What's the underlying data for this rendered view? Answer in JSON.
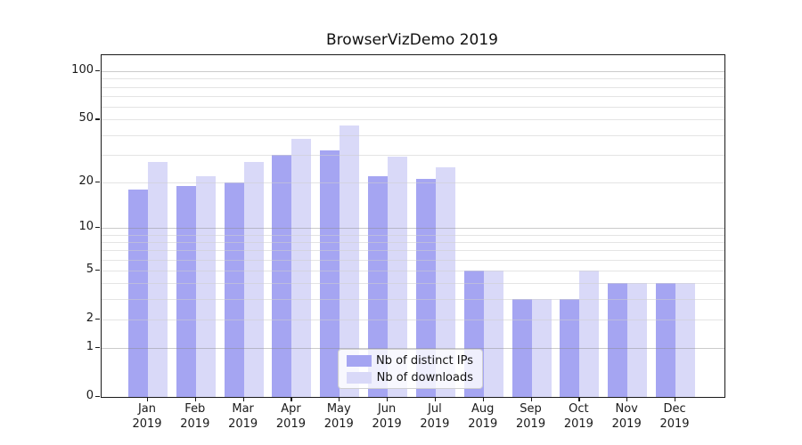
{
  "title": "BrowserVizDemo 2019",
  "colors": {
    "ips_bar": "#a5a5f2",
    "downloads_bar": "#d9d9f8",
    "minor_gridline": "rgba(205,205,205,0.55)",
    "major_gridline": "rgba(140,140,140,0.45)",
    "axis": "#1a1a1a"
  },
  "year_label": "2019",
  "chart_data": {
    "type": "bar",
    "title": "BrowserVizDemo 2019",
    "x_categories": [
      "Jan 2019",
      "Feb 2019",
      "Mar 2019",
      "Apr 2019",
      "May 2019",
      "Jun 2019",
      "Jul 2019",
      "Aug 2019",
      "Sep 2019",
      "Oct 2019",
      "Nov 2019",
      "Dec 2019"
    ],
    "months": [
      "Jan",
      "Feb",
      "Mar",
      "Apr",
      "May",
      "Jun",
      "Jul",
      "Aug",
      "Sep",
      "Oct",
      "Nov",
      "Dec"
    ],
    "series": [
      {
        "name": "Nb of distinct IPs",
        "color_key": "ips_bar",
        "values": [
          18,
          19,
          20,
          30,
          32,
          22,
          21,
          5,
          3,
          3,
          4,
          4
        ]
      },
      {
        "name": "Nb of downloads",
        "color_key": "downloads_bar",
        "values": [
          27,
          22,
          27,
          38,
          46,
          29,
          25,
          5,
          3,
          5,
          4,
          4
        ]
      }
    ],
    "y_scale": "log10(value+1)",
    "y_axis_ticks": [
      100,
      50,
      20,
      10,
      5,
      2,
      1,
      0
    ],
    "major_gridline_values": [
      1,
      10,
      100
    ],
    "minor_gridline_values": [
      2,
      3,
      4,
      5,
      6,
      7,
      8,
      9,
      20,
      30,
      40,
      50,
      60,
      70,
      80,
      90
    ],
    "ylim": [
      0,
      125
    ],
    "grid": true,
    "legend_position": "bottom-center"
  }
}
